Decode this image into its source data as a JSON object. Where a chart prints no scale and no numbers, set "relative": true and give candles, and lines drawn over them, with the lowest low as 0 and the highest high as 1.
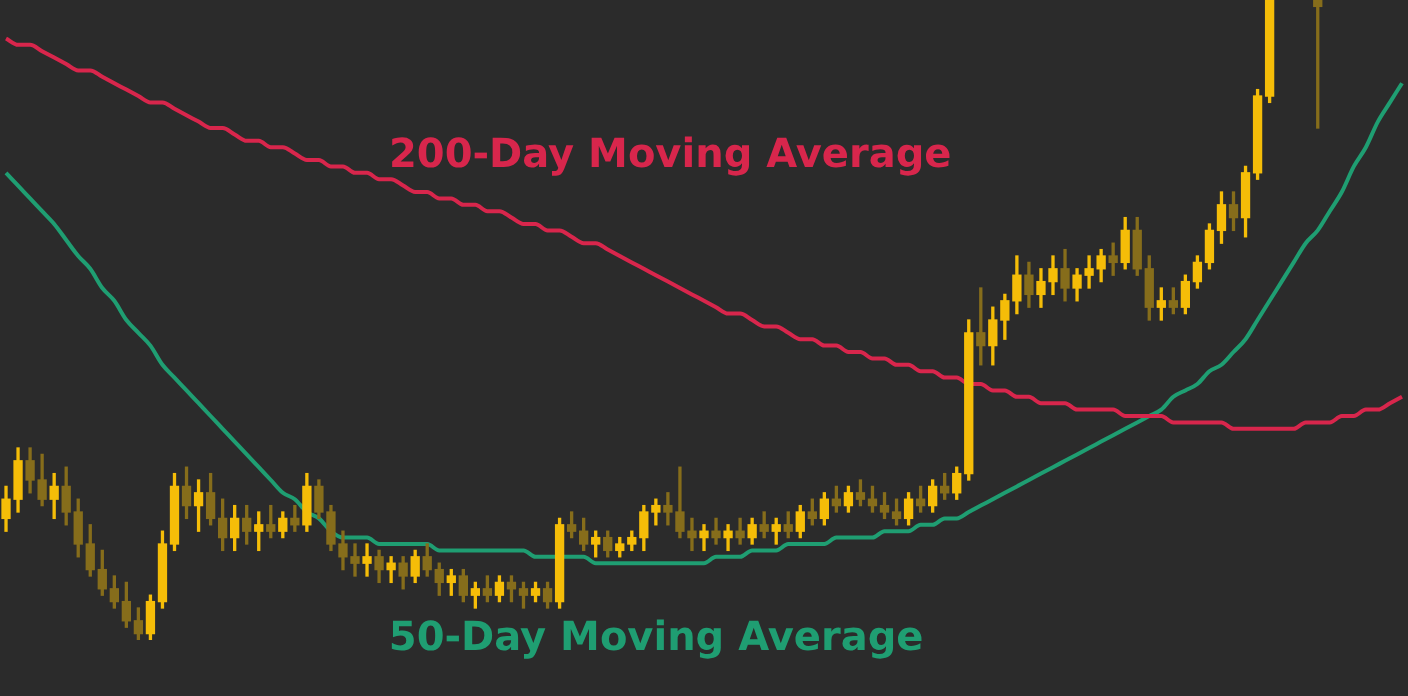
{
  "chart_data": {
    "type": "candlestick",
    "relative": true,
    "categories": [
      null,
      null,
      null,
      null,
      null,
      null,
      null,
      null,
      null,
      null,
      null,
      null,
      null,
      null,
      null,
      null,
      null,
      null,
      null,
      null,
      null,
      null,
      null,
      null,
      null,
      null,
      null,
      null,
      null,
      null,
      null,
      null,
      null,
      null,
      null,
      null,
      null,
      null,
      null,
      null,
      null,
      null,
      null,
      null,
      null,
      null,
      null,
      null,
      null,
      null,
      null,
      null,
      null,
      null,
      null,
      null,
      null,
      null,
      null,
      null,
      null,
      null,
      null,
      null,
      null,
      null,
      null,
      null,
      null,
      null,
      null,
      null,
      null,
      null,
      null,
      null,
      null,
      null,
      null,
      null,
      null,
      null,
      null,
      null,
      null,
      null,
      null,
      null,
      null,
      null,
      null,
      null,
      null,
      null,
      null,
      null,
      null,
      null,
      null,
      null,
      null,
      null,
      null,
      null,
      null,
      null,
      null,
      null,
      null,
      null,
      null,
      null,
      null,
      null,
      null,
      null,
      null
    ],
    "series": [
      {
        "colors": [
          "#f5bd08",
          "#f5bd08",
          "#866d1b",
          "#866d1b",
          "#f5bd08",
          "#866d1b",
          "#866d1b",
          "#866d1b",
          "#866d1b",
          "#866d1b",
          "#866d1b",
          "#866d1b",
          "#f5bd08",
          "#f5bd08",
          "#f5bd08",
          "#866d1b",
          "#f5bd08",
          "#866d1b",
          "#866d1b",
          "#f5bd08",
          "#866d1b",
          "#f5bd08",
          "#866d1b",
          "#f5bd08",
          "#866d1b",
          "#f5bd08",
          "#866d1b",
          "#866d1b",
          "#866d1b",
          "#866d1b",
          "#f5bd08",
          "#866d1b",
          "#f5bd08",
          "#866d1b",
          "#f5bd08",
          "#866d1b",
          "#866d1b",
          "#f5bd08",
          "#866d1b",
          "#f5bd08",
          "#866d1b",
          "#f5bd08",
          "#866d1b",
          "#866d1b",
          "#f5bd08",
          "#866d1b",
          "#f5bd08",
          "#866d1b",
          "#866d1b",
          "#f5bd08",
          "#866d1b",
          "#f5bd08",
          "#f5bd08",
          "#f5bd08",
          "#f5bd08",
          "#866d1b",
          "#866d1b",
          "#866d1b",
          "#f5bd08",
          "#866d1b",
          "#f5bd08",
          "#866d1b",
          "#f5bd08",
          "#866d1b",
          "#f5bd08",
          "#866d1b",
          "#f5bd08",
          "#866d1b",
          "#f5bd08",
          "#866d1b",
          "#f5bd08",
          "#866d1b",
          "#866d1b",
          "#866d1b",
          "#866d1b",
          "#f5bd08",
          "#866d1b",
          "#f5bd08",
          "#866d1b",
          "#f5bd08",
          "#f5bd08",
          "#866d1b",
          "#f5bd08",
          "#f5bd08",
          "#f5bd08",
          "#866d1b",
          "#f5bd08",
          "#f5bd08",
          "#866d1b",
          "#f5bd08",
          "#f5bd08",
          "#f5bd08",
          "#866d1b",
          "#f5bd08",
          "#866d1b",
          "#866d1b",
          "#f5bd08",
          "#866d1b",
          "#f5bd08",
          "#f5bd08",
          "#f5bd08",
          "#f5bd08",
          "#866d1b",
          "#f5bd08",
          "#f5bd08",
          "#f5bd08",
          null,
          null,
          null,
          "#866d1b",
          null,
          null,
          null,
          null,
          null,
          null,
          null
        ],
        "ohlc": [
          [
            0.19,
            0.24,
            0.17,
            0.22
          ],
          [
            0.22,
            0.3,
            0.2,
            0.28
          ],
          [
            0.28,
            0.3,
            0.23,
            0.25
          ],
          [
            0.25,
            0.29,
            0.21,
            0.22
          ],
          [
            0.22,
            0.26,
            0.19,
            0.24
          ],
          [
            0.24,
            0.27,
            0.18,
            0.2
          ],
          [
            0.2,
            0.22,
            0.13,
            0.15
          ],
          [
            0.15,
            0.18,
            0.1,
            0.11
          ],
          [
            0.11,
            0.14,
            0.07,
            0.08
          ],
          [
            0.08,
            0.1,
            0.05,
            0.06
          ],
          [
            0.06,
            0.09,
            0.02,
            0.03
          ],
          [
            0.03,
            0.05,
            0,
            0.01
          ],
          [
            0.01,
            0.07,
            0,
            0.06
          ],
          [
            0.06,
            0.17,
            0.05,
            0.15
          ],
          [
            0.15,
            0.26,
            0.14,
            0.24
          ],
          [
            0.24,
            0.27,
            0.19,
            0.21
          ],
          [
            0.21,
            0.25,
            0.17,
            0.23
          ],
          [
            0.23,
            0.26,
            0.18,
            0.19
          ],
          [
            0.19,
            0.22,
            0.14,
            0.16
          ],
          [
            0.16,
            0.21,
            0.14,
            0.19
          ],
          [
            0.19,
            0.21,
            0.15,
            0.17
          ],
          [
            0.17,
            0.2,
            0.14,
            0.18
          ],
          [
            0.18,
            0.21,
            0.16,
            0.17
          ],
          [
            0.17,
            0.2,
            0.16,
            0.19
          ],
          [
            0.19,
            0.21,
            0.17,
            0.18
          ],
          [
            0.18,
            0.26,
            0.17,
            0.24
          ],
          [
            0.24,
            0.25,
            0.19,
            0.2
          ],
          [
            0.2,
            0.21,
            0.14,
            0.15
          ],
          [
            0.15,
            0.17,
            0.11,
            0.13
          ],
          [
            0.13,
            0.15,
            0.1,
            0.12
          ],
          [
            0.12,
            0.15,
            0.1,
            0.13
          ],
          [
            0.13,
            0.14,
            0.09,
            0.11
          ],
          [
            0.11,
            0.13,
            0.09,
            0.12
          ],
          [
            0.12,
            0.13,
            0.08,
            0.1
          ],
          [
            0.1,
            0.14,
            0.09,
            0.13
          ],
          [
            0.13,
            0.15,
            0.1,
            0.11
          ],
          [
            0.11,
            0.12,
            0.07,
            0.09
          ],
          [
            0.09,
            0.11,
            0.07,
            0.1
          ],
          [
            0.1,
            0.11,
            0.06,
            0.07
          ],
          [
            0.07,
            0.09,
            0.05,
            0.08
          ],
          [
            0.08,
            0.1,
            0.06,
            0.07
          ],
          [
            0.07,
            0.1,
            0.06,
            0.09
          ],
          [
            0.09,
            0.1,
            0.06,
            0.08
          ],
          [
            0.08,
            0.09,
            0.05,
            0.07
          ],
          [
            0.07,
            0.09,
            0.06,
            0.08
          ],
          [
            0.08,
            0.09,
            0.05,
            0.06
          ],
          [
            0.06,
            0.19,
            0.05,
            0.18
          ],
          [
            0.18,
            0.2,
            0.16,
            0.17
          ],
          [
            0.17,
            0.19,
            0.14,
            0.15
          ],
          [
            0.15,
            0.17,
            0.13,
            0.16
          ],
          [
            0.16,
            0.17,
            0.13,
            0.14
          ],
          [
            0.14,
            0.16,
            0.13,
            0.15
          ],
          [
            0.15,
            0.17,
            0.14,
            0.16
          ],
          [
            0.16,
            0.21,
            0.14,
            0.2
          ],
          [
            0.2,
            0.22,
            0.18,
            0.21
          ],
          [
            0.21,
            0.23,
            0.18,
            0.2
          ],
          [
            0.2,
            0.27,
            0.16,
            0.17
          ],
          [
            0.17,
            0.19,
            0.14,
            0.16
          ],
          [
            0.16,
            0.18,
            0.14,
            0.17
          ],
          [
            0.17,
            0.19,
            0.15,
            0.16
          ],
          [
            0.16,
            0.18,
            0.14,
            0.17
          ],
          [
            0.17,
            0.19,
            0.15,
            0.16
          ],
          [
            0.16,
            0.19,
            0.15,
            0.18
          ],
          [
            0.18,
            0.2,
            0.16,
            0.17
          ],
          [
            0.17,
            0.19,
            0.15,
            0.18
          ],
          [
            0.18,
            0.2,
            0.16,
            0.17
          ],
          [
            0.17,
            0.21,
            0.16,
            0.2
          ],
          [
            0.2,
            0.22,
            0.18,
            0.19
          ],
          [
            0.19,
            0.23,
            0.18,
            0.22
          ],
          [
            0.22,
            0.24,
            0.2,
            0.21
          ],
          [
            0.21,
            0.24,
            0.2,
            0.23
          ],
          [
            0.23,
            0.25,
            0.21,
            0.22
          ],
          [
            0.22,
            0.24,
            0.2,
            0.21
          ],
          [
            0.21,
            0.23,
            0.19,
            0.2
          ],
          [
            0.2,
            0.22,
            0.18,
            0.19
          ],
          [
            0.19,
            0.23,
            0.18,
            0.22
          ],
          [
            0.22,
            0.24,
            0.2,
            0.21
          ],
          [
            0.21,
            0.25,
            0.2,
            0.24
          ],
          [
            0.24,
            0.26,
            0.22,
            0.23
          ],
          [
            0.23,
            0.27,
            0.22,
            0.26
          ],
          [
            0.26,
            0.5,
            0.25,
            0.48
          ],
          [
            0.48,
            0.55,
            0.43,
            0.46
          ],
          [
            0.46,
            0.52,
            0.43,
            0.5
          ],
          [
            0.5,
            0.54,
            0.47,
            0.53
          ],
          [
            0.53,
            0.6,
            0.51,
            0.57
          ],
          [
            0.57,
            0.59,
            0.52,
            0.54
          ],
          [
            0.54,
            0.58,
            0.52,
            0.56
          ],
          [
            0.56,
            0.6,
            0.54,
            0.58
          ],
          [
            0.58,
            0.61,
            0.53,
            0.55
          ],
          [
            0.55,
            0.58,
            0.53,
            0.57
          ],
          [
            0.57,
            0.6,
            0.55,
            0.58
          ],
          [
            0.58,
            0.61,
            0.56,
            0.6
          ],
          [
            0.6,
            0.62,
            0.57,
            0.59
          ],
          [
            0.59,
            0.66,
            0.58,
            0.64
          ],
          [
            0.64,
            0.66,
            0.57,
            0.58
          ],
          [
            0.58,
            0.6,
            0.5,
            0.52
          ],
          [
            0.52,
            0.55,
            0.5,
            0.53
          ],
          [
            0.53,
            0.55,
            0.51,
            0.52
          ],
          [
            0.52,
            0.57,
            0.51,
            0.56
          ],
          [
            0.56,
            0.6,
            0.55,
            0.59
          ],
          [
            0.59,
            0.65,
            0.58,
            0.64
          ],
          [
            0.64,
            0.7,
            0.62,
            0.68
          ],
          [
            0.68,
            0.7,
            0.64,
            0.66
          ],
          [
            0.66,
            0.74,
            0.63,
            0.73
          ],
          [
            0.73,
            0.86,
            0.72,
            0.85
          ],
          [
            0.85,
            1,
            0.84,
            1
          ],
          null,
          null,
          null,
          [
            1,
            1,
            0.8,
            0.99
          ],
          null,
          null,
          null,
          null,
          null,
          null,
          null
        ]
      },
      {
        "type": "line",
        "name": "200-Day Moving Average",
        "color": "#d8264c",
        "values": [
          0.94,
          0.93,
          0.93,
          0.92,
          0.91,
          0.9,
          0.89,
          0.89,
          0.88,
          0.87,
          0.86,
          0.85,
          0.84,
          0.84,
          0.83,
          0.82,
          0.81,
          0.8,
          0.8,
          0.79,
          0.78,
          0.78,
          0.77,
          0.77,
          0.76,
          0.75,
          0.75,
          0.74,
          0.74,
          0.73,
          0.73,
          0.72,
          0.72,
          0.71,
          0.7,
          0.7,
          0.69,
          0.69,
          0.68,
          0.68,
          0.67,
          0.67,
          0.66,
          0.65,
          0.65,
          0.64,
          0.64,
          0.63,
          0.62,
          0.62,
          0.61,
          0.6,
          0.59,
          0.58,
          0.57,
          0.56,
          0.55,
          0.54,
          0.53,
          0.52,
          0.51,
          0.51,
          0.5,
          0.49,
          0.49,
          0.48,
          0.47,
          0.47,
          0.46,
          0.46,
          0.45,
          0.45,
          0.44,
          0.44,
          0.43,
          0.43,
          0.42,
          0.42,
          0.41,
          0.41,
          0.4,
          0.4,
          0.39,
          0.39,
          0.38,
          0.38,
          0.37,
          0.37,
          0.37,
          0.36,
          0.36,
          0.36,
          0.36,
          0.35,
          0.35,
          0.35,
          0.35,
          0.34,
          0.34,
          0.34,
          0.34,
          0.34,
          0.33,
          0.33,
          0.33,
          0.33,
          0.33,
          0.33,
          0.34,
          0.34,
          0.34,
          0.35,
          0.35,
          0.36,
          0.36,
          0.37,
          0.38
        ]
      },
      {
        "type": "line",
        "name": "50-Day Moving Average",
        "color": "#1f9e72",
        "values": [
          0.73,
          0.71,
          0.69,
          0.67,
          0.65,
          0.625,
          0.6,
          0.58,
          0.55,
          0.53,
          0.5,
          0.48,
          0.46,
          0.43,
          0.41,
          0.39,
          0.37,
          0.35,
          0.33,
          0.31,
          0.29,
          0.27,
          0.25,
          0.23,
          0.22,
          0.2,
          0.19,
          0.17,
          0.16,
          0.16,
          0.16,
          0.15,
          0.15,
          0.15,
          0.15,
          0.15,
          0.14,
          0.14,
          0.14,
          0.14,
          0.14,
          0.14,
          0.14,
          0.14,
          0.13,
          0.13,
          0.13,
          0.13,
          0.13,
          0.12,
          0.12,
          0.12,
          0.12,
          0.12,
          0.12,
          0.12,
          0.12,
          0.12,
          0.12,
          0.13,
          0.13,
          0.13,
          0.14,
          0.14,
          0.14,
          0.15,
          0.15,
          0.15,
          0.15,
          0.16,
          0.16,
          0.16,
          0.16,
          0.17,
          0.17,
          0.17,
          0.18,
          0.18,
          0.19,
          0.19,
          0.2,
          0.21,
          0.22,
          0.23,
          0.24,
          0.25,
          0.26,
          0.27,
          0.28,
          0.29,
          0.3,
          0.31,
          0.32,
          0.33,
          0.34,
          0.35,
          0.36,
          0.38,
          0.39,
          0.4,
          0.42,
          0.43,
          0.45,
          0.47,
          0.5,
          0.53,
          0.56,
          0.59,
          0.62,
          0.64,
          0.67,
          0.7,
          0.74,
          0.77,
          0.81,
          0.84,
          0.87
        ]
      }
    ]
  }
}
